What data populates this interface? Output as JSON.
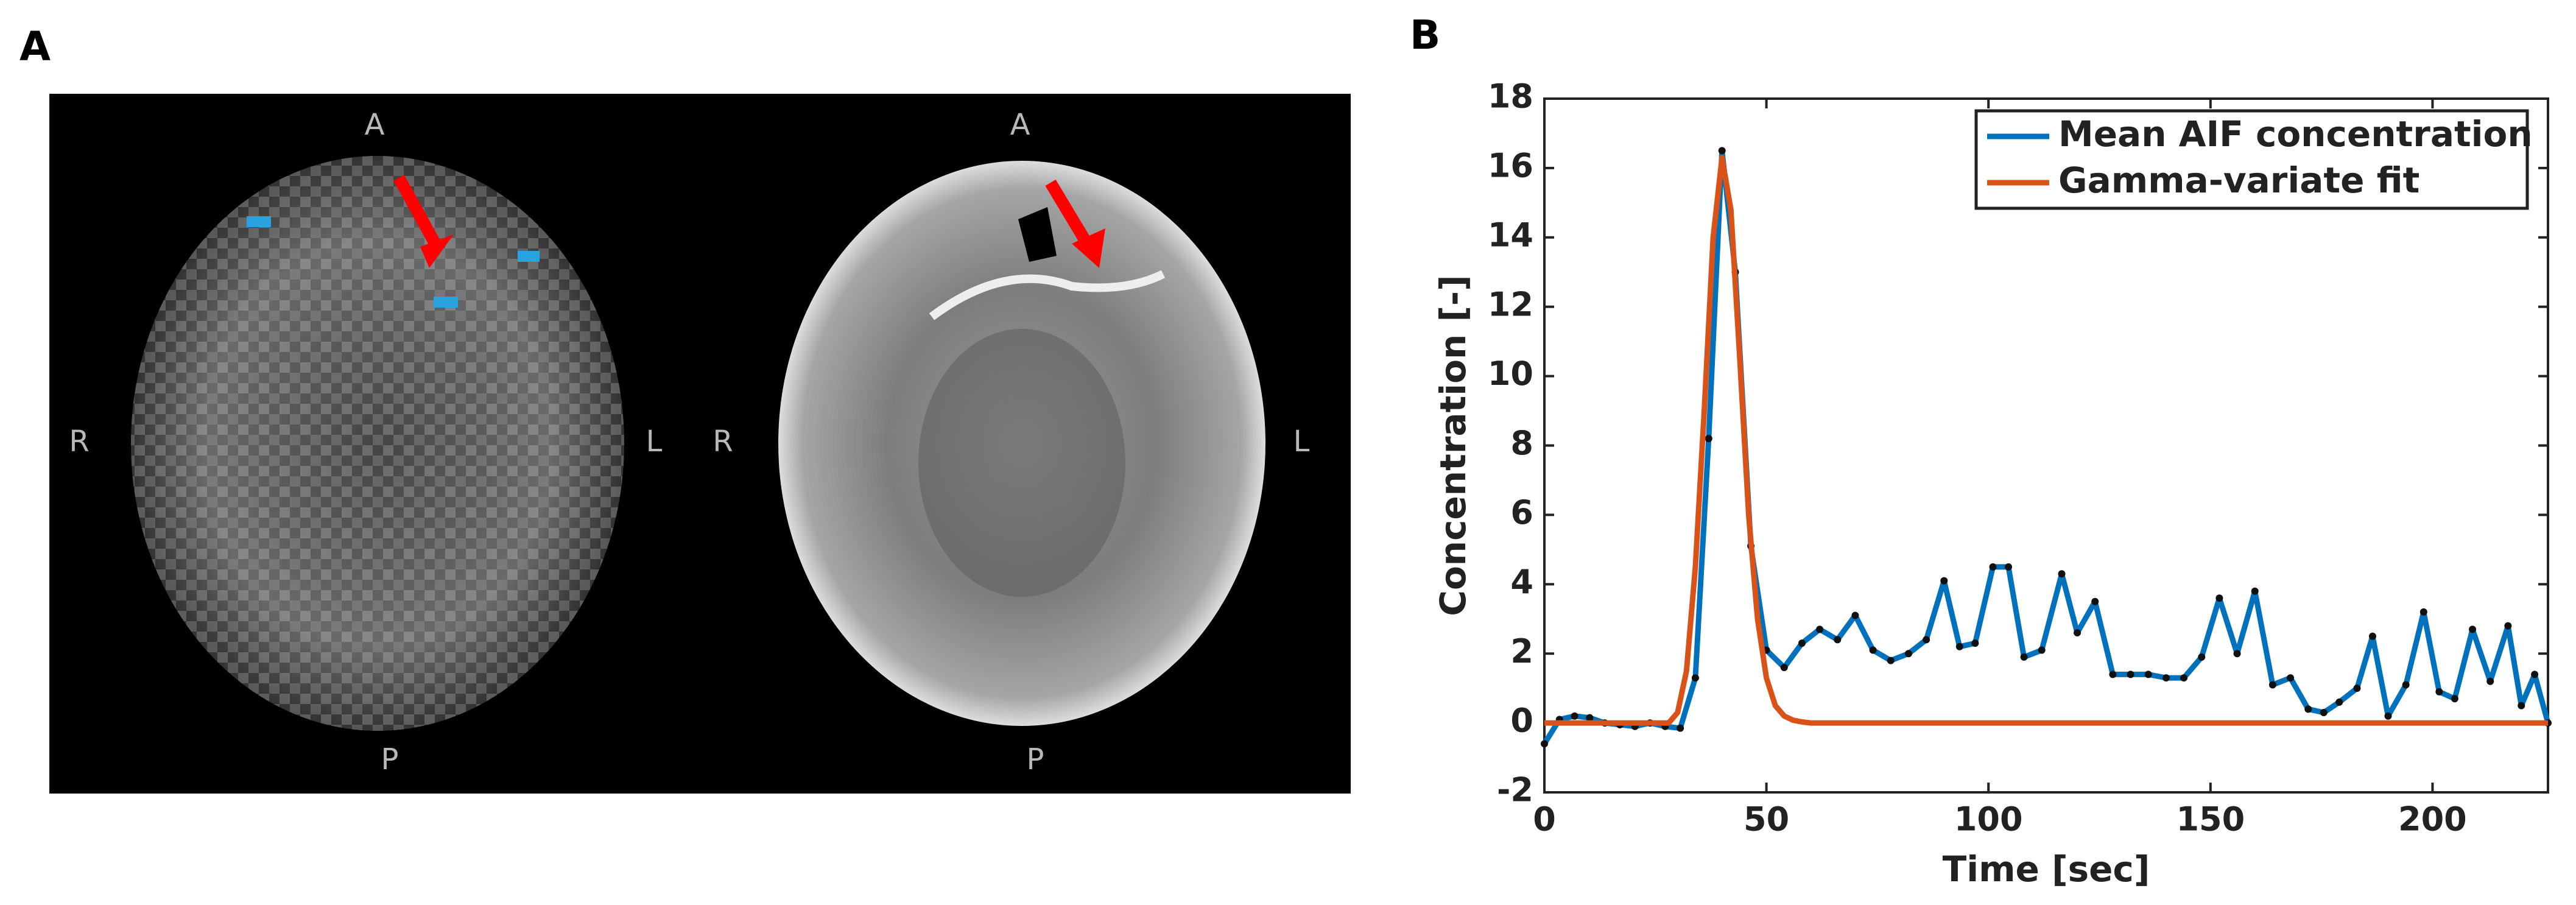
{
  "figure": {
    "panel_a_label": "A",
    "panel_b_label": "B",
    "images": [
      {
        "anterior": "A",
        "posterior": "P",
        "right": "R",
        "left": "L"
      },
      {
        "anterior": "A",
        "posterior": "P",
        "right": "R",
        "left": "L"
      }
    ]
  },
  "chart_data": {
    "type": "line",
    "xlabel": "Time [sec]",
    "ylabel": "Concentration [-]",
    "xlim": [
      0,
      226
    ],
    "ylim": [
      -2,
      18
    ],
    "xticks": [
      0,
      50,
      100,
      150,
      200
    ],
    "yticks": [
      -2,
      0,
      2,
      4,
      6,
      8,
      10,
      12,
      14,
      16,
      18
    ],
    "legend": "northeast",
    "series": [
      {
        "name": "Mean AIF concentration",
        "color": "#0072bd",
        "markers": true,
        "x": [
          0,
          3.4,
          6.8,
          10.2,
          13.6,
          17,
          20.4,
          23.8,
          27.2,
          30.6,
          34,
          37,
          40,
          43,
          46.5,
          50,
          54,
          58,
          62,
          66,
          70,
          74,
          78,
          82,
          86,
          90,
          93.5,
          97,
          101,
          104.5,
          108,
          112,
          116.5,
          120,
          124,
          128,
          132,
          136,
          140,
          144,
          148,
          152,
          156,
          160,
          164,
          168,
          172,
          175.5,
          179,
          183,
          186.5,
          190,
          194,
          198,
          201.5,
          205,
          209,
          213,
          217,
          220,
          223,
          226
        ],
        "values": [
          -0.6,
          0.1,
          0.2,
          0.15,
          0.0,
          -0.05,
          -0.1,
          0.0,
          -0.1,
          -0.15,
          1.3,
          8.2,
          16.5,
          13.0,
          5.1,
          2.1,
          1.6,
          2.3,
          2.7,
          2.4,
          3.1,
          2.1,
          1.8,
          2.0,
          2.4,
          4.1,
          2.2,
          2.3,
          4.5,
          4.5,
          1.9,
          2.1,
          4.3,
          2.6,
          3.5,
          1.4,
          1.4,
          1.4,
          1.3,
          1.3,
          1.9,
          3.6,
          2.0,
          3.8,
          1.1,
          1.3,
          0.4,
          0.3,
          0.6,
          1.0,
          2.5,
          0.2,
          1.1,
          3.2,
          0.9,
          0.7,
          2.7,
          1.2,
          2.8,
          0.5,
          1.4,
          0.0
        ]
      },
      {
        "name": "Gamma-variate fit",
        "color": "#d95319",
        "markers": false,
        "x": [
          0,
          28,
          30,
          32,
          34,
          36,
          38,
          40,
          42,
          44,
          46,
          48,
          50,
          52,
          54,
          56,
          58,
          60,
          226
        ],
        "values": [
          0,
          0,
          0.3,
          1.5,
          4.5,
          9,
          14,
          16.3,
          14.8,
          10.5,
          6,
          3,
          1.3,
          0.5,
          0.2,
          0.08,
          0.03,
          0,
          0
        ]
      }
    ]
  }
}
